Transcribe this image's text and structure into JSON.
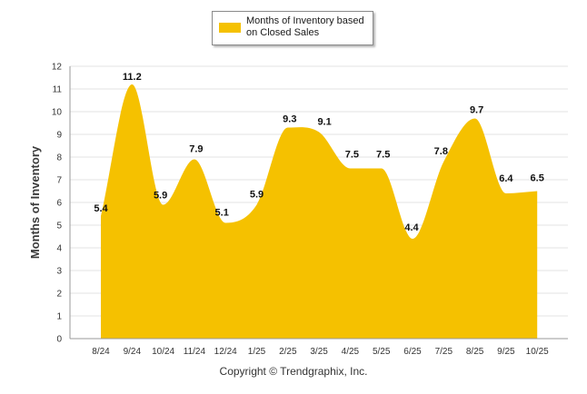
{
  "chart_data": {
    "type": "area",
    "categories": [
      "8/24",
      "9/24",
      "10/24",
      "11/24",
      "12/24",
      "1/25",
      "2/25",
      "3/25",
      "4/25",
      "5/25",
      "6/25",
      "7/25",
      "8/25",
      "9/25",
      "10/25"
    ],
    "series": [
      {
        "name": "Months of Inventory based on Closed Sales",
        "values": [
          5.4,
          11.2,
          5.9,
          7.9,
          5.1,
          5.9,
          9.3,
          9.1,
          7.5,
          7.5,
          4.4,
          7.8,
          9.7,
          6.4,
          6.5
        ],
        "color": "#F5C100"
      }
    ],
    "ylabel": "Months of Inventory",
    "xlabel": "",
    "ylim": [
      0,
      12
    ],
    "yticks": [
      "0",
      "1",
      "2",
      "3",
      "4",
      "5",
      "6",
      "7",
      "8",
      "9",
      "10",
      "11",
      "12"
    ],
    "data_labels": [
      "5.4",
      "11.2",
      "5.9",
      "7.9",
      "5.1",
      "5.9",
      "9.3",
      "9.1",
      "7.5",
      "7.5",
      "4.4",
      "7.8",
      "9.7",
      "6.4",
      "6.5"
    ],
    "grid": true,
    "legend_position": "top-center"
  },
  "legend": {
    "label": "Months of Inventory based on Closed Sales"
  },
  "footer": {
    "copyright": "Copyright © Trendgraphix, Inc."
  },
  "colors": {
    "area": "#F5C100",
    "grid": "#e3e3e3",
    "axis": "#999999"
  }
}
